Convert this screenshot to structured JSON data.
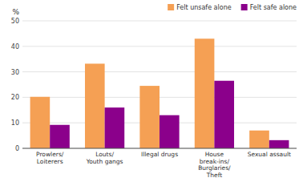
{
  "chart_data": {
    "type": "bar",
    "categories": [
      "Prowlers/\nLoiterers",
      "Louts/\nYouth gangs",
      "Illegal drugs",
      "House\nbreak-ins/\nBurglaries/\nTheft",
      "Sexual assault"
    ],
    "series": [
      {
        "name": "Felt unsafe alone",
        "color": "#F5A054",
        "values": [
          20.2,
          33.2,
          24.5,
          43.0,
          7.0
        ]
      },
      {
        "name": "Felt safe alone",
        "color": "#8B008B",
        "values": [
          9.2,
          16.0,
          13.0,
          26.5,
          3.2
        ]
      }
    ],
    "ylabel": "%",
    "ylim": [
      0,
      50
    ],
    "yticks": [
      0,
      10,
      20,
      30,
      40,
      50
    ],
    "grid": true,
    "legend": "upper right"
  }
}
